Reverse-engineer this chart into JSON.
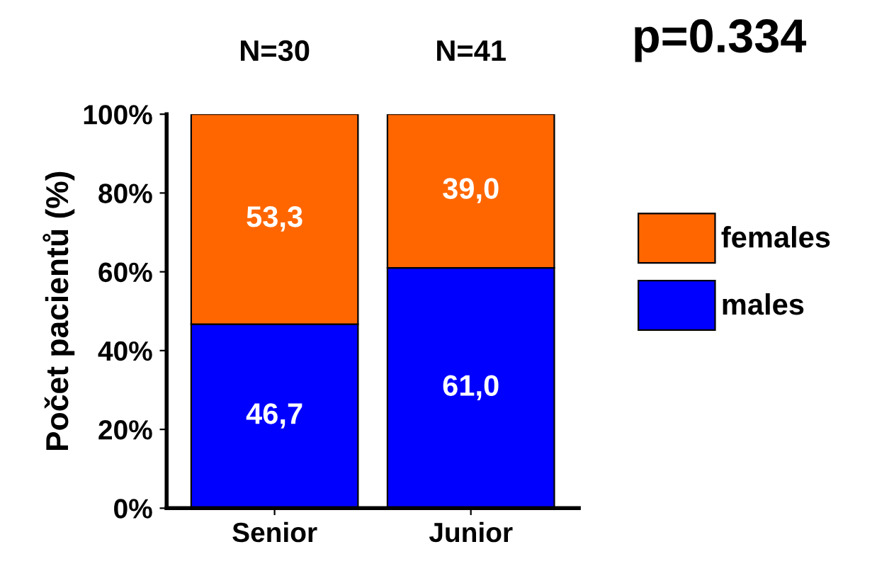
{
  "chart_data": {
    "type": "bar",
    "stacked": true,
    "ylabel": "Počet pacientů (%)",
    "categories": [
      "Senior",
      "Junior"
    ],
    "series": [
      {
        "name": "males",
        "color": "#0000ff",
        "values": [
          46.7,
          61.0
        ],
        "value_labels": [
          "46,7",
          "61,0"
        ]
      },
      {
        "name": "females",
        "color": "#ff6600",
        "values": [
          53.3,
          39.0
        ],
        "value_labels": [
          "53,3",
          "39,0"
        ]
      }
    ],
    "ylim": [
      0,
      100
    ],
    "yticks": [
      {
        "value": 0,
        "label": "0%"
      },
      {
        "value": 20,
        "label": "20%"
      },
      {
        "value": 40,
        "label": "40%"
      },
      {
        "value": 60,
        "label": "60%"
      },
      {
        "value": 80,
        "label": "80%"
      },
      {
        "value": 100,
        "label": "100%"
      }
    ],
    "annotations": [
      "N=30",
      "N=41",
      "p=0.334"
    ],
    "legend": "right",
    "grid": false
  }
}
